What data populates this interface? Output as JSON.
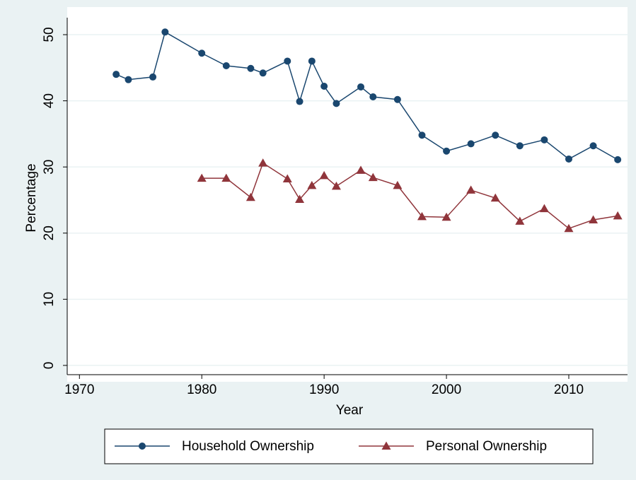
{
  "chart_data": {
    "type": "line",
    "x_label": "Year",
    "y_label": "Percentage",
    "x": [
      1973,
      1974,
      1976,
      1977,
      1980,
      1982,
      1984,
      1985,
      1987,
      1988,
      1989,
      1990,
      1991,
      1993,
      1994,
      1996,
      1998,
      2000,
      2002,
      2004,
      2006,
      2008,
      2010,
      2012,
      2014
    ],
    "series": [
      {
        "name": "Household Ownership",
        "color": "#1a476f",
        "marker": "circle",
        "values": [
          44.0,
          43.2,
          43.6,
          50.4,
          47.2,
          45.3,
          44.9,
          44.2,
          46.0,
          39.9,
          46.0,
          42.2,
          39.6,
          42.1,
          40.6,
          40.2,
          34.8,
          32.4,
          33.5,
          34.8,
          33.2,
          34.1,
          31.2,
          33.2,
          31.1
        ]
      },
      {
        "name": "Personal Ownership",
        "color": "#90353b",
        "marker": "triangle",
        "values": [
          null,
          null,
          null,
          null,
          28.3,
          28.3,
          25.4,
          30.6,
          28.2,
          25.1,
          27.2,
          28.7,
          27.1,
          29.5,
          28.4,
          27.2,
          22.5,
          22.4,
          26.5,
          25.3,
          21.8,
          23.7,
          20.7,
          22.0,
          22.6
        ]
      }
    ],
    "xlim": [
      1969,
      2014.8
    ],
    "xticks": [
      1970,
      1980,
      1990,
      2000,
      2010
    ],
    "ylim": [
      -1.4,
      51.5
    ],
    "yticks": [
      0,
      10,
      20,
      30,
      40,
      50
    ],
    "grid": true
  }
}
